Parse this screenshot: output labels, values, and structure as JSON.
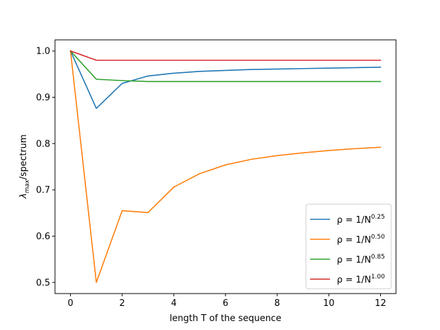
{
  "chart_data": {
    "type": "line",
    "title": "",
    "xlabel": "length T of the sequence",
    "ylabel": "/spectrum",
    "ylabel_symbol": "λ",
    "ylabel_subscript": "max",
    "xlim": [
      -0.6,
      12.6
    ],
    "ylim": [
      0.476,
      1.024
    ],
    "xticks": [
      0,
      2,
      4,
      6,
      8,
      10,
      12
    ],
    "yticks": [
      0.5,
      0.6,
      0.7,
      0.8,
      0.9,
      1.0
    ],
    "xtick_labels": [
      "0",
      "2",
      "4",
      "6",
      "8",
      "10",
      "12"
    ],
    "ytick_labels": [
      "0.5",
      "0.6",
      "0.7",
      "0.8",
      "0.9",
      "1.0"
    ],
    "grid": false,
    "legend_position": "lower-right",
    "x": [
      0,
      1,
      2,
      3,
      4,
      5,
      6,
      7,
      8,
      9,
      10,
      11,
      12
    ],
    "series": [
      {
        "name": "ρ = 1/N^0.25",
        "label_main": "ρ = 1/N",
        "label_exp": "0.25",
        "color": "#1f77b4",
        "values": [
          1.0,
          0.876,
          0.93,
          0.946,
          0.952,
          0.956,
          0.958,
          0.96,
          0.961,
          0.962,
          0.963,
          0.964,
          0.965
        ]
      },
      {
        "name": "ρ = 1/N^0.50",
        "label_main": "ρ = 1/N",
        "label_exp": "0.50",
        "color": "#ff7f0e",
        "values": [
          1.0,
          0.5,
          0.655,
          0.651,
          0.706,
          0.735,
          0.754,
          0.766,
          0.774,
          0.78,
          0.785,
          0.789,
          0.792
        ]
      },
      {
        "name": "ρ = 1/N^0.85",
        "label_main": "ρ = 1/N",
        "label_exp": "0.85",
        "color": "#2ca02c",
        "values": [
          1.0,
          0.939,
          0.936,
          0.934,
          0.934,
          0.934,
          0.934,
          0.934,
          0.934,
          0.934,
          0.934,
          0.934,
          0.934
        ]
      },
      {
        "name": "ρ = 1/N^1.00",
        "label_main": "ρ = 1/N",
        "label_exp": "1.00",
        "color": "#d62728",
        "values": [
          1.0,
          0.98,
          0.98,
          0.98,
          0.98,
          0.98,
          0.98,
          0.98,
          0.98,
          0.98,
          0.98,
          0.98,
          0.98
        ]
      }
    ]
  }
}
